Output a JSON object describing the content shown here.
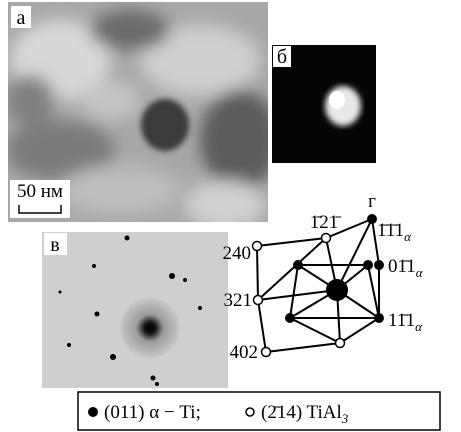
{
  "panel_a": {
    "label": "а",
    "scale_bar": "50 нм"
  },
  "panel_b": {
    "label": "б"
  },
  "panel_c": {
    "label": "в"
  },
  "panel_d": {
    "label": "г",
    "alpha_labels": [
      {
        "text": "1̄1̄1",
        "sub": "α"
      },
      {
        "text": "01̄1",
        "sub": "α"
      },
      {
        "text": "11̄1",
        "sub": "α"
      }
    ],
    "top_label": "1̄21̄",
    "left_labels": [
      "240",
      "321",
      "402"
    ]
  },
  "legend": {
    "items": [
      {
        "text": "(011) α − Ti;"
      },
      {
        "text": "(2̄14) TiAl",
        "sub": "3"
      }
    ]
  }
}
